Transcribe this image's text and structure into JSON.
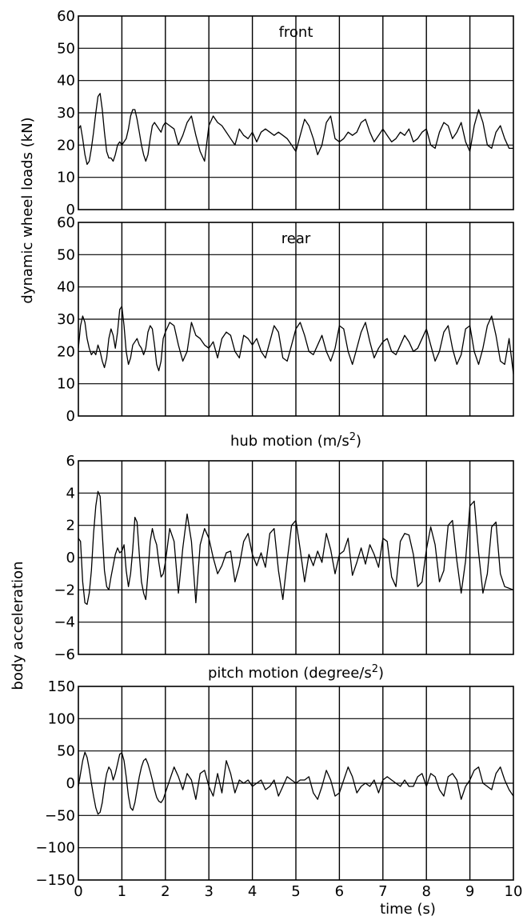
{
  "chart_data": [
    {
      "type": "line",
      "title": "front",
      "ylabel": "dynamic wheel loads (kN)",
      "xlabel": "",
      "ylim": [
        0,
        60
      ],
      "xlim": [
        0,
        10
      ],
      "yticks": [
        "0",
        "10",
        "20",
        "30",
        "40",
        "50",
        "60"
      ],
      "xticks": [],
      "grid": true,
      "series": [
        {
          "x": [
            0,
            0.05,
            0.1,
            0.15,
            0.2,
            0.25,
            0.3,
            0.35,
            0.4,
            0.45,
            0.5,
            0.55,
            0.6,
            0.65,
            0.7,
            0.75,
            0.8,
            0.85,
            0.9,
            0.95,
            1.0,
            1.05,
            1.1,
            1.15,
            1.2,
            1.25,
            1.3,
            1.35,
            1.4,
            1.45,
            1.5,
            1.55,
            1.6,
            1.65,
            1.7,
            1.75,
            1.8,
            1.85,
            1.9,
            1.95,
            2.0,
            2.1,
            2.2,
            2.3,
            2.4,
            2.5,
            2.6,
            2.7,
            2.8,
            2.9,
            3.0,
            3.1,
            3.2,
            3.3,
            3.4,
            3.5,
            3.6,
            3.7,
            3.8,
            3.9,
            4.0,
            4.1,
            4.2,
            4.3,
            4.4,
            4.5,
            4.6,
            4.7,
            4.8,
            4.9,
            5.0,
            5.1,
            5.2,
            5.3,
            5.4,
            5.5,
            5.6,
            5.7,
            5.8,
            5.9,
            6.0,
            6.1,
            6.2,
            6.3,
            6.4,
            6.5,
            6.6,
            6.7,
            6.8,
            6.9,
            7.0,
            7.1,
            7.2,
            7.3,
            7.4,
            7.5,
            7.6,
            7.7,
            7.8,
            7.9,
            8.0,
            8.1,
            8.2,
            8.3,
            8.4,
            8.5,
            8.6,
            8.7,
            8.8,
            8.9,
            9.0,
            9.1,
            9.2,
            9.3,
            9.4,
            9.5,
            9.6,
            9.7,
            9.8,
            9.9,
            10.0
          ],
          "values": [
            25,
            26,
            22,
            17,
            14,
            15,
            19,
            24,
            30,
            35,
            36,
            31,
            24,
            18,
            16,
            16,
            15,
            17,
            20,
            21,
            20,
            21,
            22,
            25,
            29,
            31,
            31,
            28,
            24,
            20,
            17,
            15,
            17,
            22,
            26,
            27,
            26,
            25,
            24,
            26,
            27,
            26,
            25,
            20,
            23,
            27,
            29,
            23,
            18,
            15,
            26,
            29,
            27,
            26,
            24,
            22,
            20,
            25,
            23,
            22,
            24,
            21,
            24,
            25,
            24,
            23,
            24,
            23,
            22,
            20,
            18,
            23,
            28,
            26,
            22,
            17,
            20,
            27,
            29,
            22,
            21,
            22,
            24,
            23,
            24,
            27,
            28,
            24,
            21,
            23,
            25,
            23,
            21,
            22,
            24,
            23,
            25,
            21,
            22,
            24,
            25,
            20,
            19,
            24,
            27,
            26,
            22,
            24,
            27,
            21,
            18,
            26,
            31,
            27,
            20,
            19,
            24,
            26,
            22,
            19,
            19
          ]
        }
      ]
    },
    {
      "type": "line",
      "title": "rear",
      "ylabel": "dynamic wheel loads (kN)",
      "xlabel": "",
      "ylim": [
        0,
        60
      ],
      "xlim": [
        0,
        10
      ],
      "yticks": [
        "0",
        "10",
        "20",
        "30",
        "40",
        "50",
        "60"
      ],
      "xticks": [],
      "grid": true,
      "series": [
        {
          "x": [
            0,
            0.05,
            0.1,
            0.15,
            0.2,
            0.25,
            0.3,
            0.35,
            0.4,
            0.45,
            0.5,
            0.55,
            0.6,
            0.65,
            0.7,
            0.75,
            0.8,
            0.85,
            0.9,
            0.95,
            1.0,
            1.05,
            1.1,
            1.15,
            1.2,
            1.25,
            1.3,
            1.35,
            1.4,
            1.45,
            1.5,
            1.55,
            1.6,
            1.65,
            1.7,
            1.75,
            1.8,
            1.85,
            1.9,
            1.95,
            2.0,
            2.1,
            2.2,
            2.3,
            2.4,
            2.5,
            2.6,
            2.7,
            2.8,
            2.9,
            3.0,
            3.1,
            3.2,
            3.3,
            3.4,
            3.5,
            3.6,
            3.7,
            3.8,
            3.9,
            4.0,
            4.1,
            4.2,
            4.3,
            4.4,
            4.5,
            4.6,
            4.7,
            4.8,
            4.9,
            5.0,
            5.1,
            5.2,
            5.3,
            5.4,
            5.5,
            5.6,
            5.7,
            5.8,
            5.9,
            6.0,
            6.1,
            6.2,
            6.3,
            6.4,
            6.5,
            6.6,
            6.7,
            6.8,
            6.9,
            7.0,
            7.1,
            7.2,
            7.3,
            7.4,
            7.5,
            7.6,
            7.7,
            7.8,
            7.9,
            8.0,
            8.1,
            8.2,
            8.3,
            8.4,
            8.5,
            8.6,
            8.7,
            8.8,
            8.9,
            9.0,
            9.1,
            9.2,
            9.3,
            9.4,
            9.5,
            9.6,
            9.7,
            9.8,
            9.9,
            10.0
          ],
          "values": [
            21,
            28,
            31,
            29,
            24,
            21,
            19,
            20,
            19,
            22,
            20,
            17,
            15,
            18,
            24,
            27,
            25,
            21,
            26,
            33,
            34,
            28,
            20,
            16,
            18,
            22,
            23,
            24,
            22,
            21,
            19,
            21,
            26,
            28,
            27,
            22,
            16,
            14,
            17,
            24,
            26,
            29,
            28,
            22,
            17,
            20,
            29,
            25,
            24,
            22,
            21,
            23,
            18,
            24,
            26,
            25,
            20,
            18,
            25,
            24,
            22,
            24,
            20,
            18,
            23,
            28,
            26,
            18,
            17,
            22,
            27,
            29,
            25,
            20,
            19,
            22,
            25,
            20,
            17,
            21,
            28,
            27,
            20,
            16,
            21,
            26,
            29,
            23,
            18,
            21,
            23,
            24,
            20,
            19,
            22,
            25,
            23,
            20,
            21,
            24,
            27,
            22,
            17,
            20,
            26,
            28,
            21,
            16,
            19,
            27,
            28,
            20,
            16,
            21,
            28,
            31,
            25,
            17,
            16,
            24,
            13
          ]
        }
      ]
    },
    {
      "type": "line",
      "title": "hub motion (m/s2)",
      "ylabel": "body acceleration",
      "xlabel": "",
      "ylim": [
        -6,
        6
      ],
      "xlim": [
        0,
        10
      ],
      "yticks": [
        "-6",
        "-4",
        "-2",
        "0",
        "2",
        "4",
        "6"
      ],
      "xticks": [],
      "grid": true,
      "series": [
        {
          "x": [
            0,
            0.05,
            0.1,
            0.15,
            0.2,
            0.25,
            0.3,
            0.35,
            0.4,
            0.45,
            0.5,
            0.55,
            0.6,
            0.65,
            0.7,
            0.75,
            0.8,
            0.85,
            0.9,
            0.95,
            1.0,
            1.05,
            1.1,
            1.15,
            1.2,
            1.25,
            1.3,
            1.35,
            1.4,
            1.45,
            1.5,
            1.55,
            1.6,
            1.65,
            1.7,
            1.75,
            1.8,
            1.85,
            1.9,
            1.95,
            2.0,
            2.1,
            2.2,
            2.3,
            2.4,
            2.5,
            2.6,
            2.7,
            2.8,
            2.9,
            3.0,
            3.1,
            3.2,
            3.3,
            3.4,
            3.5,
            3.6,
            3.7,
            3.8,
            3.9,
            4.0,
            4.1,
            4.2,
            4.3,
            4.4,
            4.5,
            4.6,
            4.7,
            4.8,
            4.9,
            5.0,
            5.1,
            5.2,
            5.3,
            5.4,
            5.5,
            5.6,
            5.7,
            5.8,
            5.9,
            6.0,
            6.1,
            6.2,
            6.3,
            6.4,
            6.5,
            6.6,
            6.7,
            6.8,
            6.9,
            7.0,
            7.1,
            7.2,
            7.3,
            7.4,
            7.5,
            7.6,
            7.7,
            7.8,
            7.9,
            8.0,
            8.1,
            8.2,
            8.3,
            8.4,
            8.5,
            8.6,
            8.7,
            8.8,
            8.9,
            9.0,
            9.1,
            9.2,
            9.3,
            9.4,
            9.5,
            9.6,
            9.7,
            9.8,
            9.9,
            10.0
          ],
          "values": [
            1.2,
            1.0,
            -1.5,
            -2.8,
            -2.9,
            -2.2,
            -0.8,
            1.5,
            3.2,
            4.1,
            3.8,
            1.5,
            -0.8,
            -1.8,
            -2.0,
            -1.2,
            -0.5,
            0.2,
            0.6,
            0.3,
            0.4,
            0.8,
            -0.8,
            -1.8,
            -1.0,
            0.5,
            2.5,
            2.2,
            0.2,
            -1.5,
            -2.2,
            -2.6,
            -1.0,
            1.0,
            1.8,
            1.2,
            0.8,
            -0.3,
            -1.2,
            -1.0,
            -0.3,
            1.8,
            1.0,
            -2.2,
            0.6,
            2.7,
            1.0,
            -2.8,
            0.8,
            1.8,
            1.2,
            0.0,
            -1.0,
            -0.5,
            0.3,
            0.4,
            -1.5,
            -0.5,
            1.0,
            1.5,
            0.2,
            -0.5,
            0.3,
            -0.6,
            1.5,
            1.8,
            -0.8,
            -2.6,
            -0.2,
            2.0,
            2.3,
            0.5,
            -1.5,
            0.2,
            -0.5,
            0.4,
            -0.3,
            1.5,
            0.5,
            -1.0,
            0.2,
            0.4,
            1.2,
            -1.1,
            -0.3,
            0.6,
            -0.4,
            0.8,
            0.2,
            -0.6,
            1.2,
            1.0,
            -1.2,
            -1.8,
            1.0,
            1.5,
            1.4,
            0.2,
            -1.8,
            -1.5,
            0.5,
            1.9,
            0.8,
            -1.5,
            -0.8,
            2.0,
            2.3,
            -0.2,
            -2.2,
            -0.2,
            3.2,
            3.5,
            0.3,
            -2.2,
            -1.0,
            1.9,
            2.2,
            -1.0,
            -1.8,
            -1.9,
            -2.0
          ]
        }
      ]
    },
    {
      "type": "line",
      "title": "pitch motion (degree/s2)",
      "ylabel": "body acceleration",
      "xlabel": "time (s)",
      "ylim": [
        -150,
        150
      ],
      "xlim": [
        0,
        10
      ],
      "yticks": [
        "-150",
        "-100",
        "-50",
        "0",
        "50",
        "100",
        "150"
      ],
      "xticks": [
        "0",
        "1",
        "2",
        "3",
        "4",
        "5",
        "6",
        "7",
        "8",
        "9",
        "10"
      ],
      "grid": true,
      "series": [
        {
          "x": [
            0,
            0.05,
            0.1,
            0.15,
            0.2,
            0.25,
            0.3,
            0.35,
            0.4,
            0.45,
            0.5,
            0.55,
            0.6,
            0.65,
            0.7,
            0.75,
            0.8,
            0.85,
            0.9,
            0.95,
            1.0,
            1.05,
            1.1,
            1.15,
            1.2,
            1.25,
            1.3,
            1.35,
            1.4,
            1.45,
            1.5,
            1.55,
            1.6,
            1.65,
            1.7,
            1.75,
            1.8,
            1.85,
            1.9,
            1.95,
            2.0,
            2.1,
            2.2,
            2.3,
            2.4,
            2.5,
            2.6,
            2.7,
            2.8,
            2.9,
            3.0,
            3.1,
            3.2,
            3.3,
            3.4,
            3.5,
            3.6,
            3.7,
            3.8,
            3.9,
            4.0,
            4.1,
            4.2,
            4.3,
            4.4,
            4.5,
            4.6,
            4.7,
            4.8,
            4.9,
            5.0,
            5.1,
            5.2,
            5.3,
            5.4,
            5.5,
            5.6,
            5.7,
            5.8,
            5.9,
            6.0,
            6.1,
            6.2,
            6.3,
            6.4,
            6.5,
            6.6,
            6.7,
            6.8,
            6.9,
            7.0,
            7.1,
            7.2,
            7.3,
            7.4,
            7.5,
            7.6,
            7.7,
            7.8,
            7.9,
            8.0,
            8.1,
            8.2,
            8.3,
            8.4,
            8.5,
            8.6,
            8.7,
            8.8,
            8.9,
            9.0,
            9.1,
            9.2,
            9.3,
            9.4,
            9.5,
            9.6,
            9.7,
            9.8,
            9.9,
            10.0
          ],
          "values": [
            -5,
            15,
            35,
            48,
            40,
            22,
            0,
            -20,
            -38,
            -48,
            -45,
            -30,
            -5,
            15,
            25,
            20,
            5,
            15,
            30,
            45,
            47,
            35,
            10,
            -20,
            -38,
            -42,
            -30,
            -10,
            10,
            25,
            35,
            38,
            30,
            18,
            5,
            -10,
            -22,
            -28,
            -30,
            -25,
            -15,
            5,
            25,
            10,
            -10,
            15,
            5,
            -25,
            15,
            20,
            -5,
            -20,
            15,
            -15,
            35,
            15,
            -15,
            5,
            0,
            5,
            -5,
            0,
            5,
            -10,
            -5,
            5,
            -20,
            -5,
            10,
            5,
            0,
            5,
            5,
            10,
            -15,
            -25,
            -5,
            20,
            5,
            -20,
            -15,
            5,
            25,
            10,
            -15,
            -5,
            0,
            -5,
            5,
            -15,
            5,
            10,
            5,
            0,
            -5,
            5,
            -5,
            -5,
            10,
            15,
            -5,
            15,
            10,
            -10,
            -20,
            10,
            15,
            5,
            -25,
            -5,
            5,
            20,
            25,
            0,
            -5,
            -10,
            15,
            25,
            5,
            -10,
            -20
          ]
        }
      ]
    }
  ]
}
